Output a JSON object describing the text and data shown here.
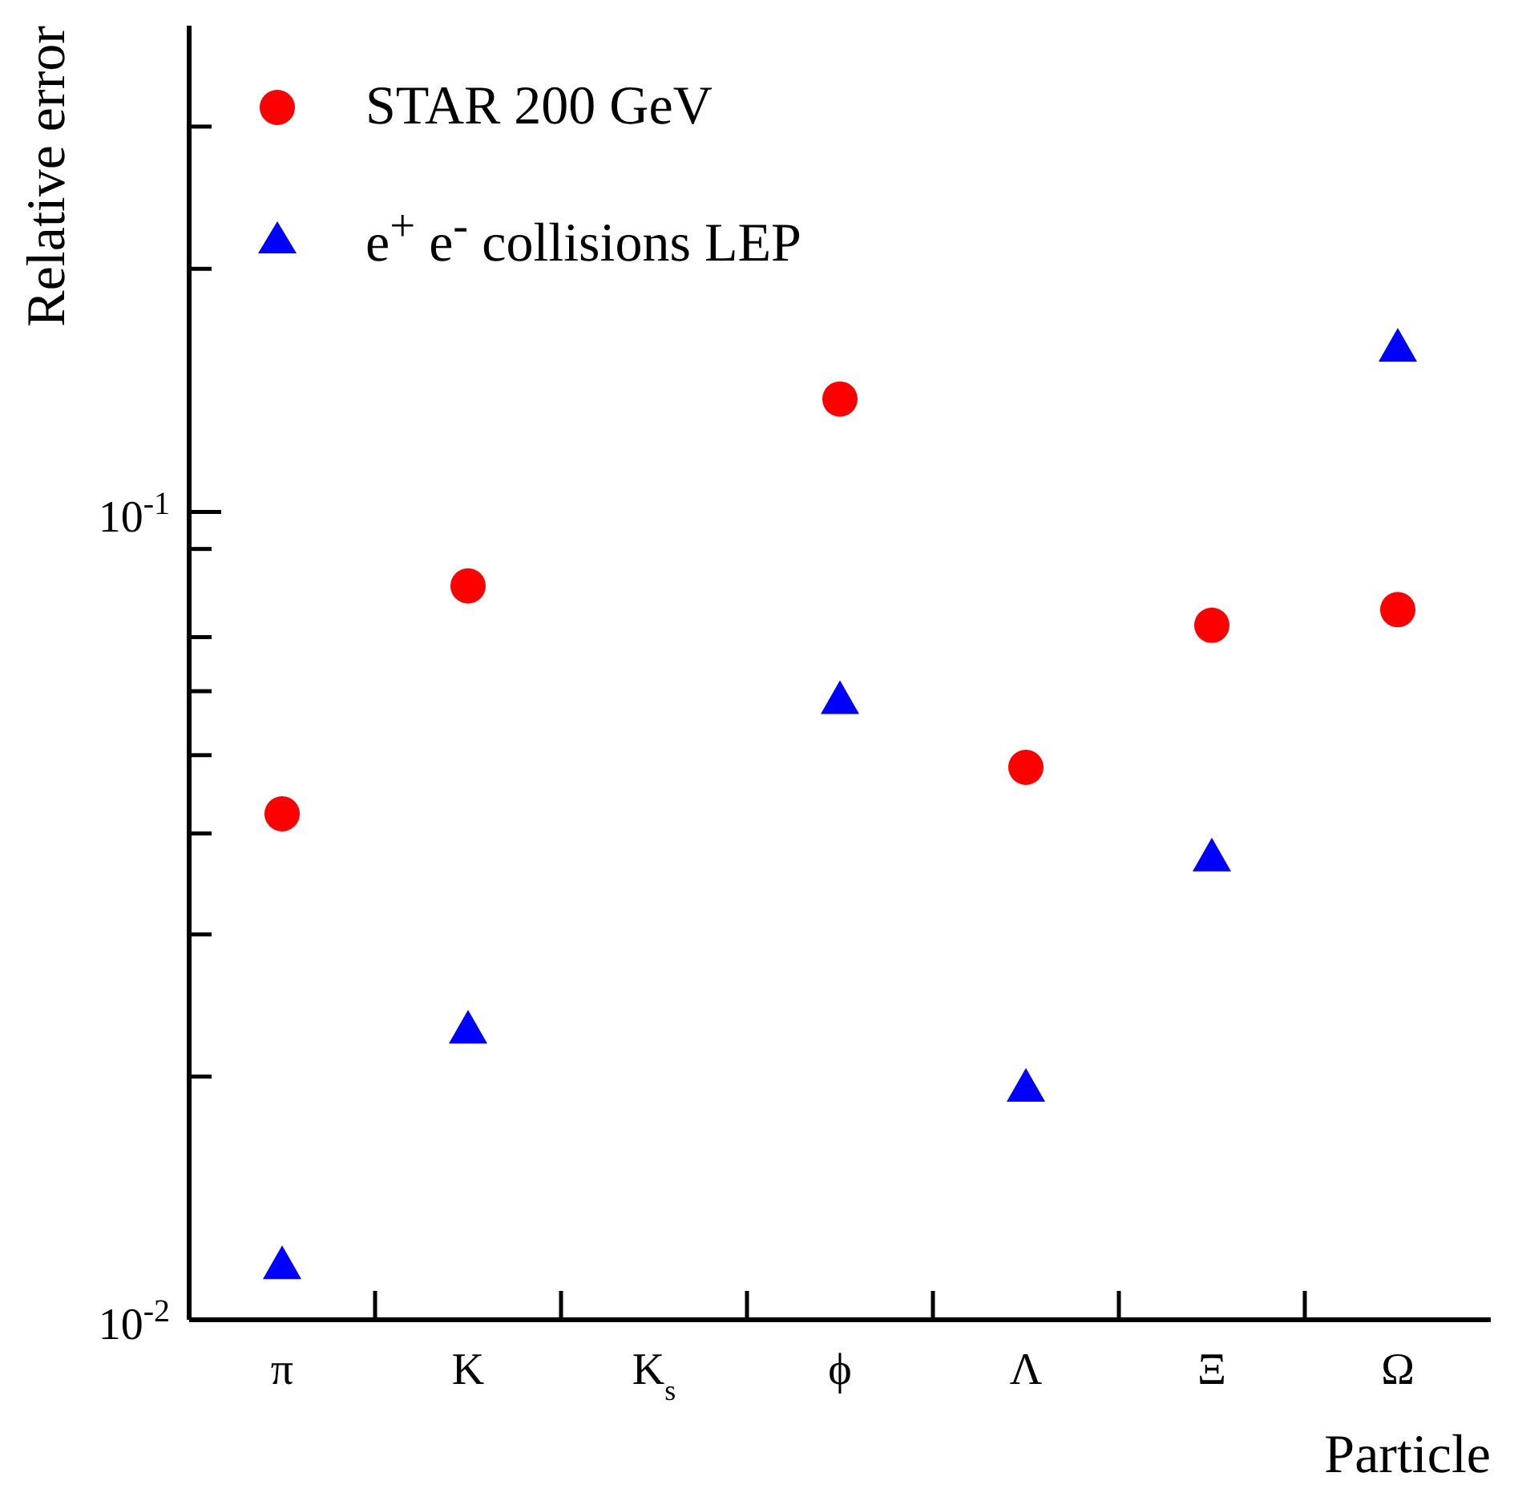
{
  "chart_data": {
    "type": "scatter",
    "xlabel": "Particle",
    "ylabel": "Relative error",
    "categories": [
      "π",
      "K",
      "K$_{s}$",
      "ϕ",
      "Λ",
      "Ξ",
      "Ω"
    ],
    "series": [
      {
        "name": "STAR 200 GeV",
        "color": "#ff0000",
        "marker": "circle",
        "values": [
          0.0423,
          0.081,
          null,
          0.138,
          0.0483,
          0.0724,
          0.0757
        ]
      },
      {
        "name": "e$^{+}$ e$^{-}$ collisions LEP",
        "color": "#0000ff",
        "marker": "triangle",
        "values": [
          0.0117,
          0.0229,
          null,
          0.0586,
          0.0194,
          0.0374,
          0.16
        ]
      }
    ],
    "log": "y",
    "ylim": [
      0.01,
      0.4
    ],
    "yticks": [
      {
        "value": 0.01,
        "label": "10$^{-2}$"
      },
      {
        "value": 0.02,
        "label": null
      },
      {
        "value": 0.03,
        "label": null
      },
      {
        "value": 0.04,
        "label": null
      },
      {
        "value": 0.05,
        "label": null
      },
      {
        "value": 0.06,
        "label": null
      },
      {
        "value": 0.07,
        "label": null
      },
      {
        "value": 0.09,
        "label": null
      },
      {
        "value": 0.1,
        "label": "10$^{-1}$"
      },
      {
        "value": 0.2,
        "label": null
      },
      {
        "value": 0.3,
        "label": null
      }
    ],
    "grid": false,
    "legend": "top left"
  }
}
